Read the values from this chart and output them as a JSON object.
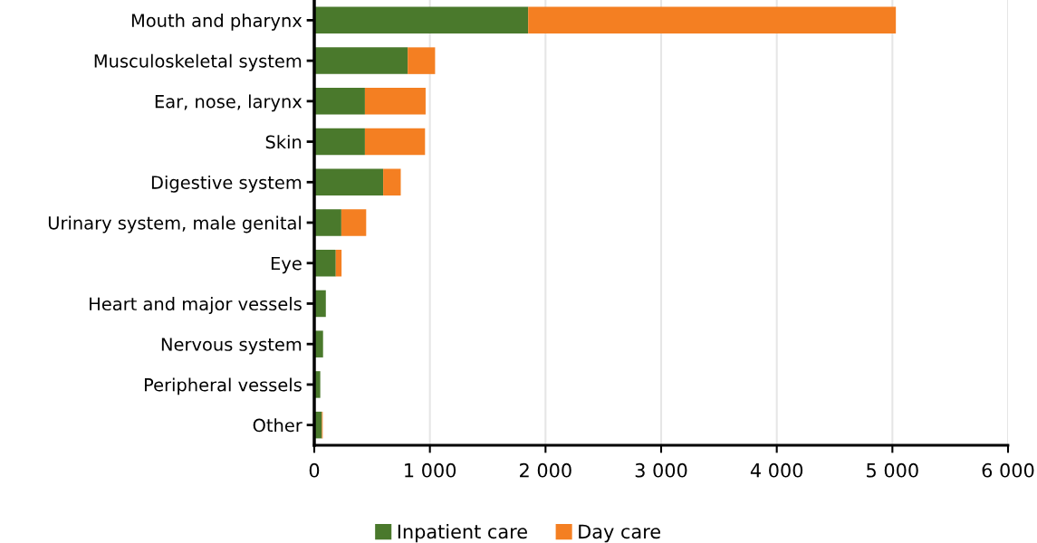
{
  "chart_data": {
    "type": "bar",
    "orientation": "horizontal",
    "stacked": true,
    "categories": [
      "Mouth and pharynx",
      "Musculoskeletal system",
      "Ear, nose, larynx",
      "Skin",
      "Digestive system",
      "Urinary system, male genital",
      "Eye",
      "Heart and major vessels",
      "Nervous system",
      "Peripheral vessels",
      "Other"
    ],
    "series": [
      {
        "name": "Inpatient care",
        "color": "#4a792c",
        "values": [
          1850,
          808,
          438,
          438,
          596,
          234,
          186,
          100,
          76,
          52,
          66
        ]
      },
      {
        "name": "Day care",
        "color": "#f47f22",
        "values": [
          3180,
          237,
          525,
          520,
          152,
          215,
          50,
          null,
          null,
          null,
          7
        ]
      }
    ],
    "xlim": [
      0,
      6000
    ],
    "xticks": [
      {
        "value": 0,
        "label": "0"
      },
      {
        "value": 1000,
        "label": "1 000"
      },
      {
        "value": 2000,
        "label": "2 000"
      },
      {
        "value": 3000,
        "label": "3 000"
      },
      {
        "value": 4000,
        "label": "4 000"
      },
      {
        "value": 5000,
        "label": "5 000"
      },
      {
        "value": 6000,
        "label": "6 000"
      }
    ],
    "grid": "x",
    "legend": "bottom"
  }
}
